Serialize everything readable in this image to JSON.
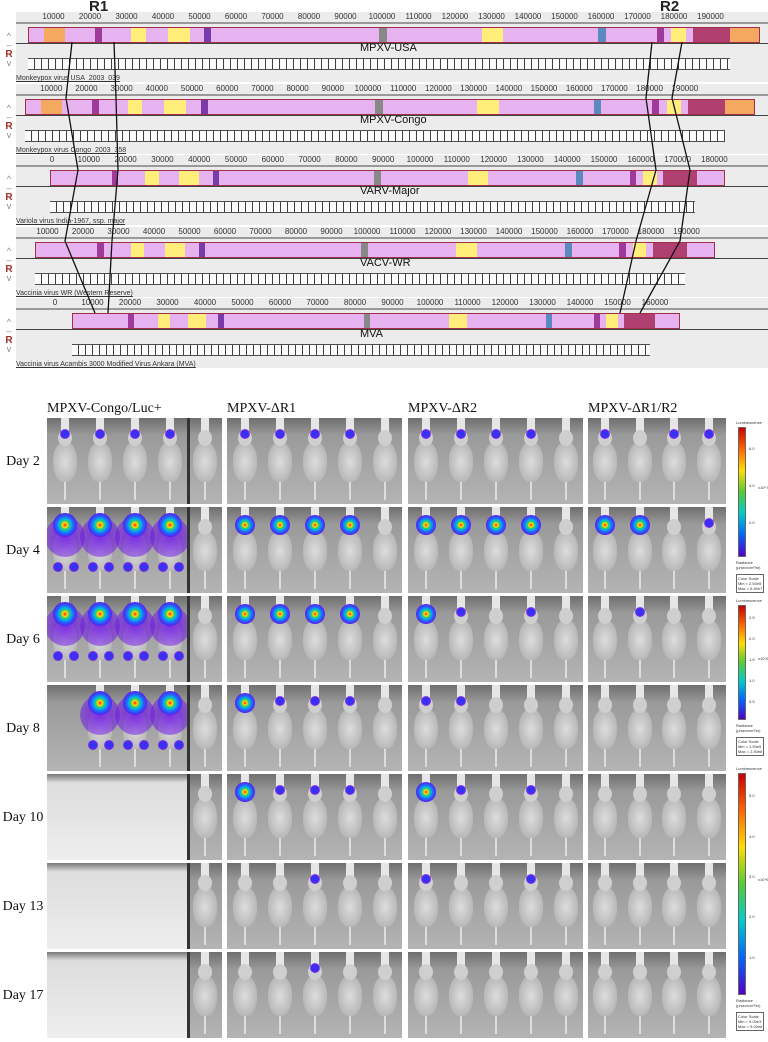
{
  "regions": {
    "r1": "R1",
    "r2": "R2"
  },
  "tracks": [
    {
      "name": "MPXV-USA",
      "genome": "Monkeypox virus USA_2003_039",
      "ticks": [
        "10000",
        "20000",
        "30000",
        "40000",
        "50000",
        "60000",
        "70000",
        "80000",
        "90000",
        "100000",
        "110000",
        "120000",
        "130000",
        "140000",
        "150000",
        "160000",
        "170000",
        "180000",
        "190000"
      ]
    },
    {
      "name": "MPXV-Congo",
      "genome": "Monkeypox virus Congo_2003_358",
      "ticks": [
        "10000",
        "20000",
        "30000",
        "40000",
        "50000",
        "60000",
        "70000",
        "80000",
        "90000",
        "100000",
        "110000",
        "120000",
        "130000",
        "140000",
        "150000",
        "160000",
        "170000",
        "180000",
        "190000"
      ]
    },
    {
      "name": "VARV-Major",
      "genome": "Variola virus India-1967, ssp. major",
      "ticks": [
        "0",
        "10000",
        "20000",
        "30000",
        "40000",
        "50000",
        "60000",
        "70000",
        "80000",
        "90000",
        "100000",
        "110000",
        "120000",
        "130000",
        "140000",
        "150000",
        "160000",
        "170000",
        "180000"
      ]
    },
    {
      "name": "VACV-WR",
      "genome": "Vaccinia virus WR (Western Reserve)",
      "ticks": [
        "10000",
        "20000",
        "30000",
        "40000",
        "50000",
        "60000",
        "70000",
        "80000",
        "90000",
        "100000",
        "110000",
        "120000",
        "130000",
        "140000",
        "150000",
        "160000",
        "170000",
        "180000",
        "190000"
      ]
    },
    {
      "name": "MVA",
      "genome": "Vaccinia virus Acambis 3000 Modified Virus Ankara (MVA)",
      "ticks": [
        "0",
        "10000",
        "20000",
        "30000",
        "40000",
        "50000",
        "60000",
        "70000",
        "80000",
        "90000",
        "100000",
        "110000",
        "120000",
        "130000",
        "140000",
        "150000",
        "160000"
      ]
    }
  ],
  "gutter": {
    "up": "^",
    "minus": "–",
    "r": "R",
    "down": "v"
  },
  "imaging": {
    "groups": [
      "MPXV-Congo/Luc+",
      "MPXV-ΔR1",
      "MPXV-ΔR2",
      "MPXV-ΔR1/R2"
    ],
    "days": [
      "Day 2",
      "Day 4",
      "Day 6",
      "Day 8",
      "Day 10",
      "Day 13",
      "Day 17"
    ],
    "signal_levels_legend": "0 none, 1 weak head, 2 strong head, 3 disseminated, null absent",
    "signal": [
      [
        [
          1,
          1,
          1,
          1
        ],
        [
          3,
          3,
          3,
          3
        ],
        [
          3,
          3,
          3,
          3
        ],
        [
          null,
          3,
          3,
          3
        ],
        [
          null,
          null,
          null,
          null
        ],
        [
          null,
          null,
          null,
          null
        ],
        [
          null,
          null,
          null,
          null
        ]
      ],
      [
        [
          1,
          1,
          1,
          1
        ],
        [
          2,
          2,
          2,
          2
        ],
        [
          2,
          2,
          2,
          2
        ],
        [
          2,
          1,
          1,
          1
        ],
        [
          2,
          1,
          1,
          1
        ],
        [
          0,
          0,
          1,
          0
        ],
        [
          0,
          0,
          1,
          0
        ]
      ],
      [
        [
          1,
          1,
          1,
          1
        ],
        [
          2,
          2,
          2,
          2
        ],
        [
          2,
          1,
          0,
          1
        ],
        [
          1,
          1,
          0,
          0
        ],
        [
          2,
          1,
          0,
          1
        ],
        [
          1,
          0,
          0,
          1
        ],
        [
          0,
          0,
          0,
          0
        ]
      ],
      [
        [
          1,
          0,
          1,
          1
        ],
        [
          2,
          2,
          0,
          1
        ],
        [
          0,
          1,
          0,
          0
        ],
        [
          0,
          0,
          0,
          0
        ],
        [
          0,
          0,
          0,
          0
        ],
        [
          0,
          0,
          0,
          0
        ],
        [
          0,
          0,
          0,
          0
        ]
      ]
    ],
    "colorbars": [
      {
        "title": "Luminescence",
        "ticks": [
          "6.0",
          "4.0",
          "2.0"
        ],
        "exp": "x10^7",
        "unit": "Radiance (p/sec/cm²/sr)",
        "scale": "Color Scale",
        "min": "Min = 2.50e5",
        "max": "Max = 6.50e7"
      },
      {
        "title": "Luminescence",
        "ticks": [
          "2.5",
          "2.0",
          "1.5",
          "1.0",
          "0.5"
        ],
        "exp": "x10^6",
        "unit": "Radiance (p/sec/cm²/sr)",
        "scale": "Color Scale",
        "min": "Min = 1.50e5",
        "max": "Max = 2.50e6"
      },
      {
        "title": "Luminescence",
        "ticks": [
          "5.0",
          "4.0",
          "3.0",
          "2.0",
          "1.0"
        ],
        "exp": "x10^6",
        "unit": "Radiance (p/sec/cm²/sr)",
        "scale": "Color Scale",
        "min": "Min = 9.00e3",
        "max": "Max = 5.00e6"
      }
    ]
  }
}
